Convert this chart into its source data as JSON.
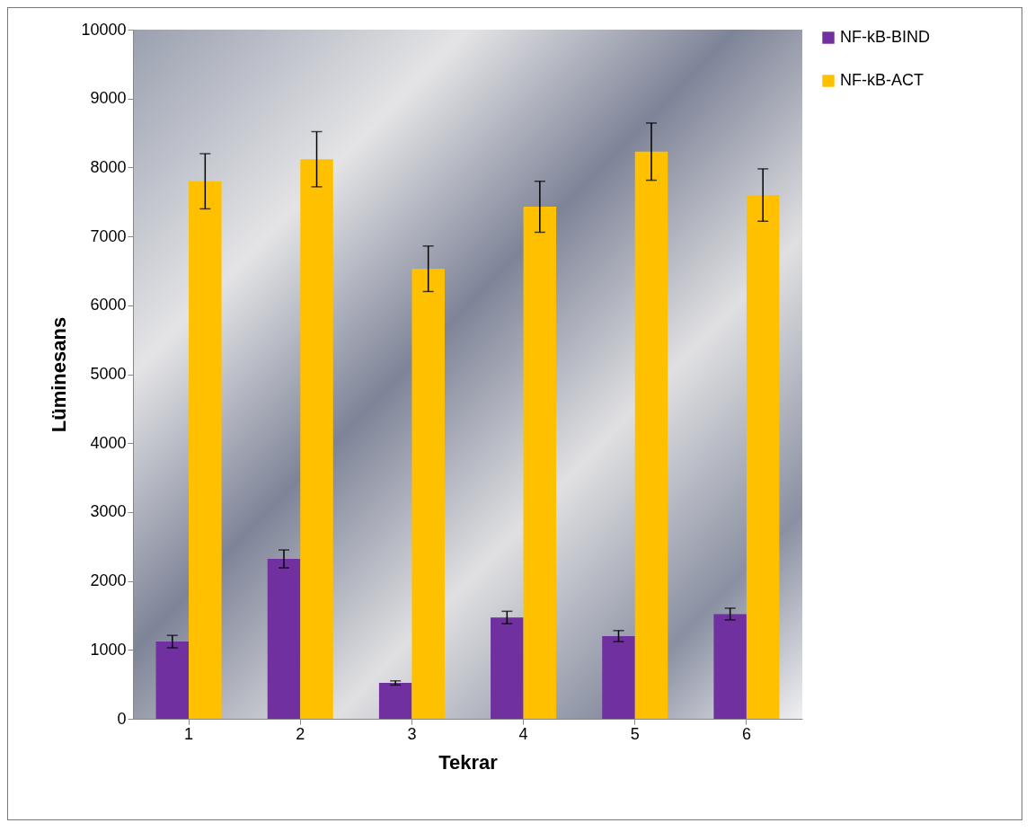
{
  "chart_data": {
    "type": "bar",
    "xlabel": "Tekrar",
    "ylabel": "Lüminesans",
    "categories": [
      "1",
      "2",
      "3",
      "4",
      "5",
      "6"
    ],
    "series": [
      {
        "name": "NF-kB-BIND",
        "color": "#7030a0",
        "values": [
          1120,
          2320,
          520,
          1470,
          1200,
          1520
        ],
        "errors": [
          90,
          130,
          30,
          90,
          80,
          85
        ]
      },
      {
        "name": "NF-kB-ACT",
        "color": "#ffc000",
        "values": [
          7800,
          8120,
          6530,
          7430,
          8230,
          7600
        ],
        "errors": [
          400,
          400,
          330,
          370,
          415,
          380
        ]
      }
    ],
    "ylim": [
      0,
      10000
    ],
    "yticks": [
      0,
      1000,
      2000,
      3000,
      4000,
      5000,
      6000,
      7000,
      8000,
      9000,
      10000
    ],
    "grid": false,
    "legend": "right"
  }
}
